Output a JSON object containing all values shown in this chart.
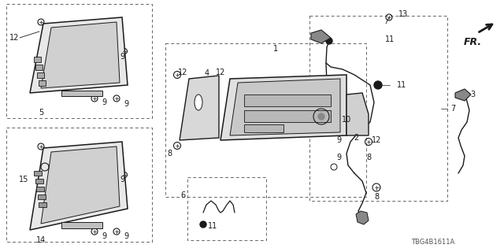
{
  "bg_color": "#ffffff",
  "lc": "#1a1a1a",
  "dc": "#666666",
  "watermark": "TBG4B1611A",
  "fig_width": 6.4,
  "fig_height": 3.2,
  "dpi": 100
}
